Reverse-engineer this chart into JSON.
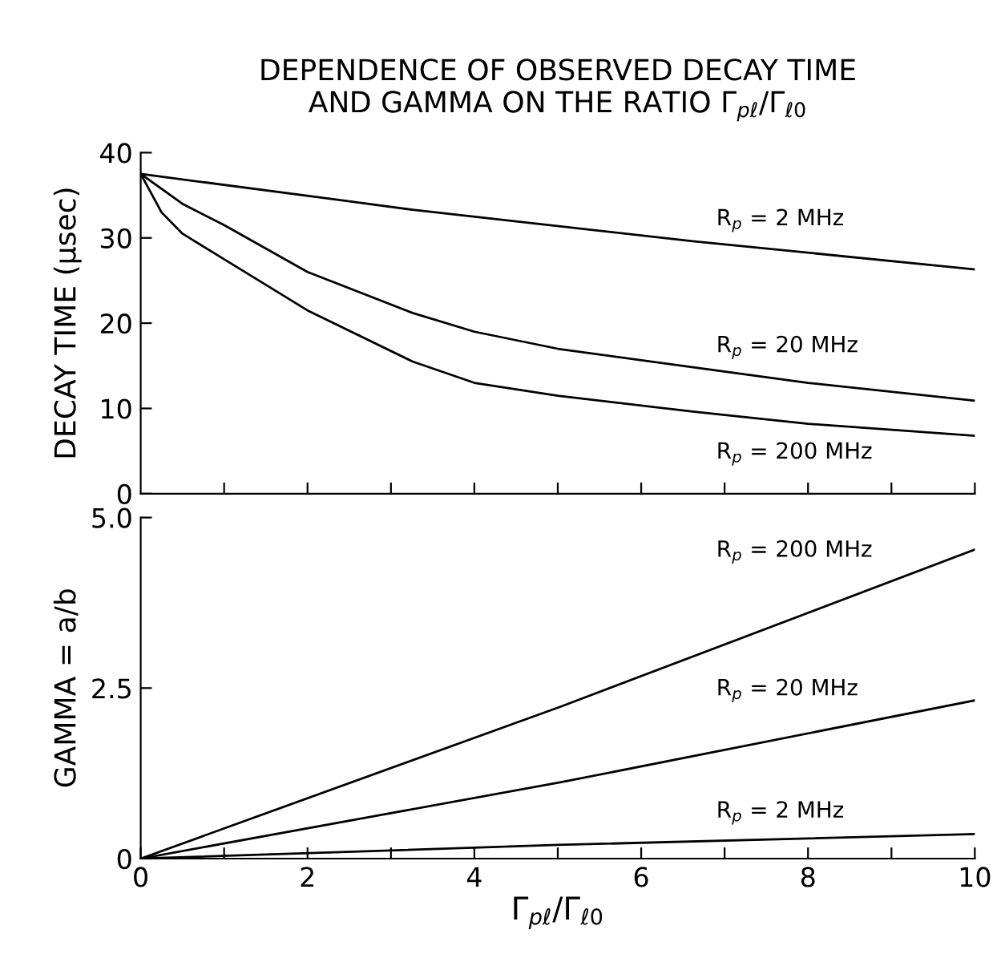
{
  "chart_data": [
    {
      "type": "line",
      "title": "DEPENDENCE OF OBSERVED DECAY TIME\nAND GAMMA ON THE RATIO Γ$_{pℓ}$/Γ$_{ℓ0}$",
      "ylabel": "DECAY TIME (μsec)",
      "xlim": [
        0,
        10
      ],
      "ylim": [
        0,
        40
      ],
      "xticks": [
        {
          "value": 1,
          "label": null
        },
        {
          "value": 2,
          "label": null
        },
        {
          "value": 3,
          "label": null
        },
        {
          "value": 4,
          "label": null
        },
        {
          "value": 5,
          "label": null
        },
        {
          "value": 6,
          "label": null
        },
        {
          "value": 7,
          "label": null
        },
        {
          "value": 8,
          "label": null
        },
        {
          "value": 9,
          "label": null
        },
        {
          "value": 10,
          "label": null
        }
      ],
      "yticks": [
        0,
        10,
        20,
        30,
        40
      ],
      "tick_labels": "y",
      "grid": false,
      "legend": false,
      "line_style": "solid",
      "marker": "none",
      "series": [
        {
          "name": "R$_{p}$ = 2 MHz",
          "color": "#000000",
          "x": [
            0,
            2.34,
            3.26,
            6.64,
            10
          ],
          "values": [
            37.5,
            34.5,
            33.3,
            29.6,
            26.3
          ]
        },
        {
          "name": "R$_{p}$ = 20 MHz",
          "color": "#000000",
          "x": [
            0,
            0.5,
            1,
            2,
            3.26,
            4,
            5,
            6.64,
            8,
            10
          ],
          "values": [
            37.5,
            34,
            31.5,
            26,
            21.2,
            19,
            17,
            14.8,
            13,
            10.9
          ]
        },
        {
          "name": "R$_{p}$ = 200 MHz",
          "color": "#000000",
          "x": [
            0,
            0.25,
            0.5,
            1,
            2,
            3.26,
            4,
            5,
            6.64,
            8,
            10
          ],
          "values": [
            37.5,
            33,
            30.5,
            27.5,
            21.5,
            15.5,
            13,
            11.5,
            9.6,
            8.2,
            6.8
          ]
        }
      ]
    },
    {
      "type": "line",
      "ylabel": "GAMMA = a/b",
      "xlabel": "Γ$_{pℓ}$/Γ$_{ℓ0}$",
      "xlim": [
        0,
        10
      ],
      "ylim": [
        0,
        5
      ],
      "xticks": [
        0,
        {
          "value": 1,
          "label": null
        },
        2,
        {
          "value": 3,
          "label": null
        },
        4,
        {
          "value": 5,
          "label": null
        },
        6,
        {
          "value": 7,
          "label": null
        },
        8,
        {
          "value": 9,
          "label": null
        },
        10
      ],
      "yticks": [
        0,
        2.5,
        {
          "value": 5,
          "label": "5.0"
        }
      ],
      "grid": false,
      "legend": false,
      "line_style": "solid",
      "marker": "none",
      "series": [
        {
          "name": "R$_{p}$ = 200 MHz",
          "color": "#000000",
          "x": [
            0,
            5.04,
            10
          ],
          "values": [
            0,
            2.23,
            4.53
          ]
        },
        {
          "name": "R$_{p}$ = 20 MHz",
          "color": "#000000",
          "x": [
            0,
            5.04,
            10
          ],
          "values": [
            0,
            1.12,
            2.32
          ]
        },
        {
          "name": "R$_{p}$ = 2 MHz",
          "color": "#000000",
          "x": [
            0,
            5,
            10
          ],
          "values": [
            0,
            0.2,
            0.36
          ]
        }
      ]
    }
  ]
}
